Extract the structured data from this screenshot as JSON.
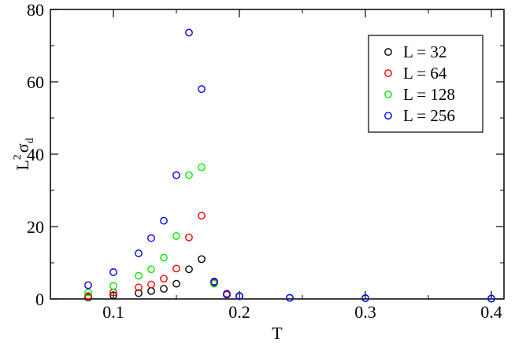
{
  "chart_data": {
    "type": "scatter",
    "title": "",
    "xlabel": "T",
    "ylabel": {
      "base": "L",
      "superscript": "2",
      "sigma": "σ",
      "subscript": "d"
    },
    "xlim": [
      0.05,
      0.41
    ],
    "ylim": [
      0,
      80
    ],
    "x_ticks": [
      0.1,
      0.2,
      0.3,
      0.4
    ],
    "x_tick_labels": [
      "0.1",
      "0.2",
      "0.3",
      "0.4"
    ],
    "y_ticks": [
      0,
      20,
      40,
      60,
      80
    ],
    "y_tick_labels": [
      "0",
      "20",
      "40",
      "60",
      "80"
    ],
    "grid": false,
    "legend_position": "top-right",
    "marker": "open-circle",
    "series": [
      {
        "name": "L = 32",
        "color": "#000000",
        "x": [
          0.08,
          0.1,
          0.12,
          0.13,
          0.14,
          0.15,
          0.16,
          0.17,
          0.18,
          0.19,
          0.2,
          0.24,
          0.3,
          0.4
        ],
        "y": [
          0.4,
          1.0,
          1.6,
          2.2,
          2.8,
          4.2,
          8.2,
          11.0,
          4.6,
          1.4,
          0.7,
          0.3,
          0.2,
          0.1
        ]
      },
      {
        "name": "L = 64",
        "color": "#ff0000",
        "x": [
          0.08,
          0.1,
          0.12,
          0.13,
          0.14,
          0.15,
          0.16,
          0.17,
          0.18,
          0.19,
          0.2,
          0.24,
          0.3,
          0.4
        ],
        "y": [
          0.8,
          1.8,
          3.2,
          4.0,
          5.6,
          8.4,
          17.0,
          23.0,
          4.4,
          1.5,
          0.8,
          0.3,
          0.2,
          0.1
        ]
      },
      {
        "name": "L = 128",
        "color": "#00ee00",
        "x": [
          0.08,
          0.1,
          0.12,
          0.13,
          0.14,
          0.15,
          0.16,
          0.17,
          0.18,
          0.19,
          0.2,
          0.24,
          0.3,
          0.4
        ],
        "y": [
          1.8,
          3.6,
          6.4,
          8.2,
          11.4,
          17.4,
          34.2,
          36.4,
          4.2,
          1.2,
          0.7,
          0.3,
          0.2,
          0.1
        ]
      },
      {
        "name": "L = 256",
        "color": "#0000ff",
        "x": [
          0.08,
          0.1,
          0.12,
          0.13,
          0.14,
          0.15,
          0.16,
          0.17,
          0.18,
          0.19,
          0.2,
          0.24,
          0.3,
          0.4
        ],
        "y": [
          3.8,
          7.4,
          12.6,
          16.8,
          21.6,
          34.2,
          73.6,
          58.0,
          4.8,
          1.2,
          0.8,
          0.3,
          0.2,
          0.1
        ]
      }
    ]
  }
}
